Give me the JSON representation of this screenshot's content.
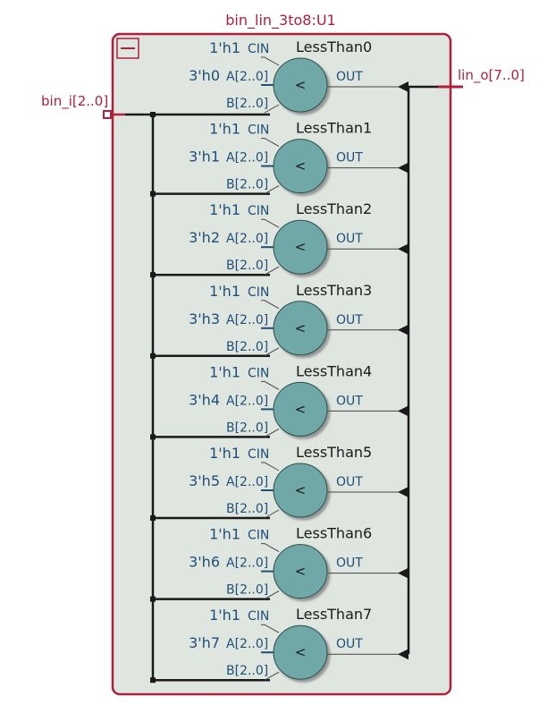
{
  "module": {
    "title": "bin_lin_3to8:U1",
    "input_port": "bin_i[2..0]",
    "output_port": "lin_o[7..0]",
    "collapse_icon": "minus-icon"
  },
  "comparators": [
    {
      "name": "LessThan0",
      "cin": "1'h1",
      "a_const": "3'h0"
    },
    {
      "name": "LessThan1",
      "cin": "1'h1",
      "a_const": "3'h1"
    },
    {
      "name": "LessThan2",
      "cin": "1'h1",
      "a_const": "3'h2"
    },
    {
      "name": "LessThan3",
      "cin": "1'h1",
      "a_const": "3'h3"
    },
    {
      "name": "LessThan4",
      "cin": "1'h1",
      "a_const": "3'h4"
    },
    {
      "name": "LessThan5",
      "cin": "1'h1",
      "a_const": "3'h5"
    },
    {
      "name": "LessThan6",
      "cin": "1'h1",
      "a_const": "3'h6"
    },
    {
      "name": "LessThan7",
      "cin": "1'h1",
      "a_const": "3'h7"
    }
  ],
  "pins": {
    "cin": "CIN",
    "a": "A[2..0]",
    "b": "B[2..0]",
    "out": "OUT",
    "symbol": "<"
  },
  "colors": {
    "frame": "#b0203a",
    "background": "#dfe6df",
    "comparator_fill": "#6fa8a8",
    "wire": "#1a1a1a",
    "pin_text": "#1f4f78"
  }
}
